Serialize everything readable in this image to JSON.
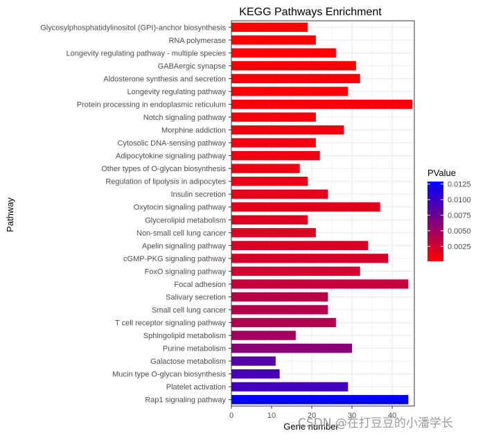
{
  "chart_data": {
    "type": "bar",
    "orientation": "horizontal",
    "title": "KEGG Pathways Enrichment",
    "xlabel": "Gene number",
    "ylabel": "Pathway",
    "xlim": [
      0,
      45.5
    ],
    "xticks": [
      0,
      10,
      20,
      30,
      40
    ],
    "grid": true,
    "categories": [
      "Glycosylphosphatidylinositol (GPI)-anchor biosynthesis",
      "RNA polymerase",
      "Longevity regulating pathway - multiple species",
      "GABAergic synapse",
      "Aldosterone synthesis and secretion",
      "Longevity regulating pathway",
      "Protein processing in endoplasmic reticulum",
      "Notch signaling pathway",
      "Morphine addiction",
      "Cytosolic DNA-sensing pathway",
      "Adipocytokine signaling pathway",
      "Other types of O-glycan biosynthesis",
      "Regulation of lipolysis in adipocytes",
      "Insulin secretion",
      "Oxytocin signaling pathway",
      "Glycerolipid metabolism",
      "Non-small cell lung cancer",
      "Apelin signaling pathway",
      "cGMP-PKG signaling pathway",
      "FoxO signaling pathway",
      "Focal adhesion",
      "Salivary secretion",
      "Small cell lung cancer",
      "T cell receptor signaling pathway",
      "Sphingolipid metabolism",
      "Purine metabolism",
      "Galactose metabolism",
      "Mucin type O-glycan biosynthesis",
      "Platelet activation",
      "Rap1 signaling pathway"
    ],
    "values": [
      19,
      21,
      26,
      31,
      32,
      29,
      45,
      21,
      28,
      21,
      22,
      17,
      19,
      24,
      37,
      19,
      21,
      34,
      39,
      32,
      44,
      24,
      24,
      26,
      16,
      30,
      11,
      12,
      29,
      44
    ],
    "pvalues": [
      0.0001,
      0.0002,
      0.0003,
      0.0004,
      0.0004,
      0.0005,
      0.0005,
      0.0007,
      0.0008,
      0.0009,
      0.001,
      0.0011,
      0.0012,
      0.0014,
      0.0015,
      0.0016,
      0.0018,
      0.002,
      0.0022,
      0.0025,
      0.003,
      0.0036,
      0.0038,
      0.004,
      0.0048,
      0.006,
      0.0085,
      0.0093,
      0.0096,
      0.0129
    ],
    "legend": {
      "title": "PValue",
      "position": "right",
      "ticks": [
        "0.0125",
        "0.0100",
        "0.0075",
        "0.0050",
        "0.0025"
      ],
      "tick_values": [
        0.0125,
        0.01,
        0.0075,
        0.005,
        0.0025
      ],
      "range": [
        0.0001,
        0.0129
      ],
      "low_color": "#FF0000",
      "high_color": "#0000FF"
    }
  },
  "watermark": "CSDN @在打豆豆的小潘学长",
  "colors": {
    "panel_border": "#333333",
    "grid": "#ebebeb",
    "axis_text": "#4d4d4d",
    "title_text": "#000000"
  }
}
